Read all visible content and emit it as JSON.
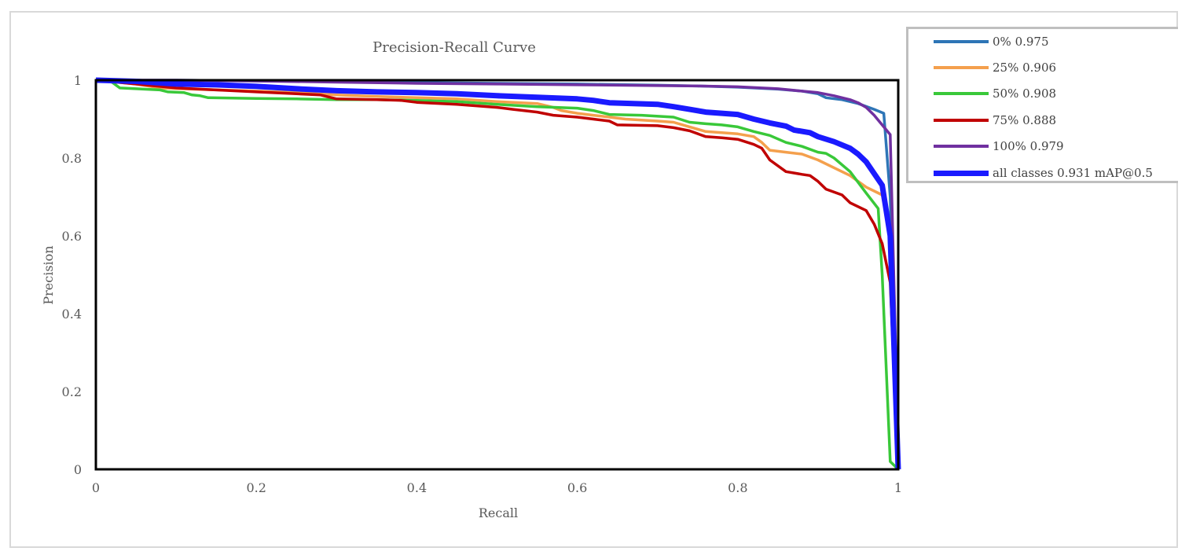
{
  "chart_data": {
    "type": "line",
    "title": "Precision-Recall Curve",
    "xlabel": "Recall",
    "ylabel": "Precision",
    "xlim": [
      0,
      1
    ],
    "ylim": [
      0,
      1
    ],
    "xticks": [
      "0",
      "0.2",
      "0.4",
      "0.6",
      "0.8",
      "1"
    ],
    "yticks": [
      "0",
      "0.2",
      "0.4",
      "0.6",
      "0.8",
      "1"
    ],
    "legend_position": "right",
    "series": [
      {
        "name": "0% 0.975",
        "color": "#2e75b6",
        "points": [
          [
            0,
            1
          ],
          [
            0.1,
            1
          ],
          [
            0.2,
            0.998
          ],
          [
            0.3,
            0.996
          ],
          [
            0.4,
            0.994
          ],
          [
            0.5,
            0.992
          ],
          [
            0.6,
            0.99
          ],
          [
            0.7,
            0.987
          ],
          [
            0.75,
            0.985
          ],
          [
            0.8,
            0.982
          ],
          [
            0.85,
            0.977
          ],
          [
            0.88,
            0.972
          ],
          [
            0.9,
            0.965
          ],
          [
            0.91,
            0.955
          ],
          [
            0.93,
            0.95
          ],
          [
            0.95,
            0.94
          ],
          [
            0.97,
            0.925
          ],
          [
            0.982,
            0.915
          ],
          [
            0.99,
            0.7
          ],
          [
            1,
            0
          ]
        ]
      },
      {
        "name": "25% 0.906",
        "color": "#f4a04d",
        "points": [
          [
            0,
            1
          ],
          [
            0.05,
            0.99
          ],
          [
            0.08,
            0.98
          ],
          [
            0.15,
            0.975
          ],
          [
            0.2,
            0.972
          ],
          [
            0.25,
            0.968
          ],
          [
            0.3,
            0.962
          ],
          [
            0.35,
            0.958
          ],
          [
            0.4,
            0.955
          ],
          [
            0.45,
            0.952
          ],
          [
            0.5,
            0.945
          ],
          [
            0.55,
            0.94
          ],
          [
            0.57,
            0.93
          ],
          [
            0.58,
            0.922
          ],
          [
            0.6,
            0.915
          ],
          [
            0.62,
            0.91
          ],
          [
            0.64,
            0.905
          ],
          [
            0.66,
            0.9
          ],
          [
            0.7,
            0.895
          ],
          [
            0.72,
            0.892
          ],
          [
            0.74,
            0.88
          ],
          [
            0.76,
            0.868
          ],
          [
            0.78,
            0.865
          ],
          [
            0.8,
            0.862
          ],
          [
            0.82,
            0.855
          ],
          [
            0.83,
            0.84
          ],
          [
            0.84,
            0.82
          ],
          [
            0.86,
            0.815
          ],
          [
            0.88,
            0.81
          ],
          [
            0.9,
            0.795
          ],
          [
            0.92,
            0.775
          ],
          [
            0.94,
            0.755
          ],
          [
            0.96,
            0.725
          ],
          [
            0.98,
            0.705
          ],
          [
            0.99,
            0.6
          ],
          [
            1,
            0
          ]
        ]
      },
      {
        "name": "50% 0.908",
        "color": "#39c839",
        "points": [
          [
            0,
            1
          ],
          [
            0.02,
            0.995
          ],
          [
            0.03,
            0.98
          ],
          [
            0.05,
            0.978
          ],
          [
            0.08,
            0.975
          ],
          [
            0.09,
            0.97
          ],
          [
            0.11,
            0.968
          ],
          [
            0.12,
            0.962
          ],
          [
            0.13,
            0.96
          ],
          [
            0.14,
            0.955
          ],
          [
            0.2,
            0.953
          ],
          [
            0.25,
            0.952
          ],
          [
            0.3,
            0.95
          ],
          [
            0.35,
            0.95
          ],
          [
            0.4,
            0.948
          ],
          [
            0.45,
            0.945
          ],
          [
            0.5,
            0.938
          ],
          [
            0.55,
            0.932
          ],
          [
            0.6,
            0.928
          ],
          [
            0.62,
            0.922
          ],
          [
            0.64,
            0.912
          ],
          [
            0.68,
            0.91
          ],
          [
            0.72,
            0.905
          ],
          [
            0.74,
            0.892
          ],
          [
            0.76,
            0.888
          ],
          [
            0.78,
            0.885
          ],
          [
            0.8,
            0.88
          ],
          [
            0.82,
            0.868
          ],
          [
            0.84,
            0.858
          ],
          [
            0.86,
            0.84
          ],
          [
            0.88,
            0.83
          ],
          [
            0.9,
            0.815
          ],
          [
            0.91,
            0.812
          ],
          [
            0.92,
            0.8
          ],
          [
            0.94,
            0.765
          ],
          [
            0.96,
            0.71
          ],
          [
            0.975,
            0.67
          ],
          [
            0.98,
            0.5
          ],
          [
            0.99,
            0.02
          ],
          [
            1,
            0
          ]
        ]
      },
      {
        "name": "75% 0.888",
        "color": "#c00000",
        "points": [
          [
            0,
            1
          ],
          [
            0.05,
            0.99
          ],
          [
            0.1,
            0.98
          ],
          [
            0.15,
            0.975
          ],
          [
            0.2,
            0.97
          ],
          [
            0.25,
            0.965
          ],
          [
            0.28,
            0.962
          ],
          [
            0.3,
            0.952
          ],
          [
            0.35,
            0.95
          ],
          [
            0.38,
            0.948
          ],
          [
            0.4,
            0.943
          ],
          [
            0.45,
            0.938
          ],
          [
            0.5,
            0.93
          ],
          [
            0.52,
            0.925
          ],
          [
            0.55,
            0.918
          ],
          [
            0.57,
            0.91
          ],
          [
            0.6,
            0.905
          ],
          [
            0.62,
            0.9
          ],
          [
            0.64,
            0.895
          ],
          [
            0.65,
            0.885
          ],
          [
            0.7,
            0.883
          ],
          [
            0.72,
            0.878
          ],
          [
            0.74,
            0.87
          ],
          [
            0.76,
            0.855
          ],
          [
            0.78,
            0.852
          ],
          [
            0.8,
            0.848
          ],
          [
            0.82,
            0.835
          ],
          [
            0.83,
            0.825
          ],
          [
            0.84,
            0.795
          ],
          [
            0.86,
            0.765
          ],
          [
            0.88,
            0.758
          ],
          [
            0.89,
            0.755
          ],
          [
            0.9,
            0.74
          ],
          [
            0.91,
            0.72
          ],
          [
            0.93,
            0.705
          ],
          [
            0.94,
            0.685
          ],
          [
            0.96,
            0.665
          ],
          [
            0.97,
            0.63
          ],
          [
            0.98,
            0.58
          ],
          [
            0.99,
            0.48
          ],
          [
            1,
            0
          ]
        ]
      },
      {
        "name": "100% 0.979",
        "color": "#7030a0",
        "points": [
          [
            0,
            1
          ],
          [
            0.1,
            1
          ],
          [
            0.2,
            0.998
          ],
          [
            0.3,
            0.995
          ],
          [
            0.4,
            0.992
          ],
          [
            0.5,
            0.99
          ],
          [
            0.6,
            0.988
          ],
          [
            0.7,
            0.986
          ],
          [
            0.75,
            0.985
          ],
          [
            0.8,
            0.983
          ],
          [
            0.85,
            0.978
          ],
          [
            0.88,
            0.972
          ],
          [
            0.9,
            0.968
          ],
          [
            0.92,
            0.96
          ],
          [
            0.94,
            0.95
          ],
          [
            0.95,
            0.942
          ],
          [
            0.96,
            0.93
          ],
          [
            0.97,
            0.91
          ],
          [
            0.99,
            0.86
          ],
          [
            1,
            0.05
          ]
        ]
      },
      {
        "name": "all classes 0.931 mAP@0.5",
        "color": "#1a1aff",
        "points": [
          [
            0,
            1
          ],
          [
            0.05,
            0.997
          ],
          [
            0.1,
            0.99
          ],
          [
            0.15,
            0.988
          ],
          [
            0.2,
            0.984
          ],
          [
            0.25,
            0.978
          ],
          [
            0.3,
            0.973
          ],
          [
            0.35,
            0.97
          ],
          [
            0.4,
            0.968
          ],
          [
            0.45,
            0.965
          ],
          [
            0.5,
            0.96
          ],
          [
            0.55,
            0.956
          ],
          [
            0.6,
            0.952
          ],
          [
            0.62,
            0.948
          ],
          [
            0.64,
            0.942
          ],
          [
            0.7,
            0.938
          ],
          [
            0.72,
            0.932
          ],
          [
            0.74,
            0.925
          ],
          [
            0.76,
            0.918
          ],
          [
            0.8,
            0.912
          ],
          [
            0.82,
            0.9
          ],
          [
            0.84,
            0.89
          ],
          [
            0.86,
            0.882
          ],
          [
            0.87,
            0.872
          ],
          [
            0.89,
            0.865
          ],
          [
            0.9,
            0.855
          ],
          [
            0.92,
            0.842
          ],
          [
            0.94,
            0.825
          ],
          [
            0.95,
            0.81
          ],
          [
            0.96,
            0.79
          ],
          [
            0.97,
            0.76
          ],
          [
            0.98,
            0.73
          ],
          [
            0.99,
            0.6
          ],
          [
            1,
            0
          ]
        ]
      }
    ]
  }
}
